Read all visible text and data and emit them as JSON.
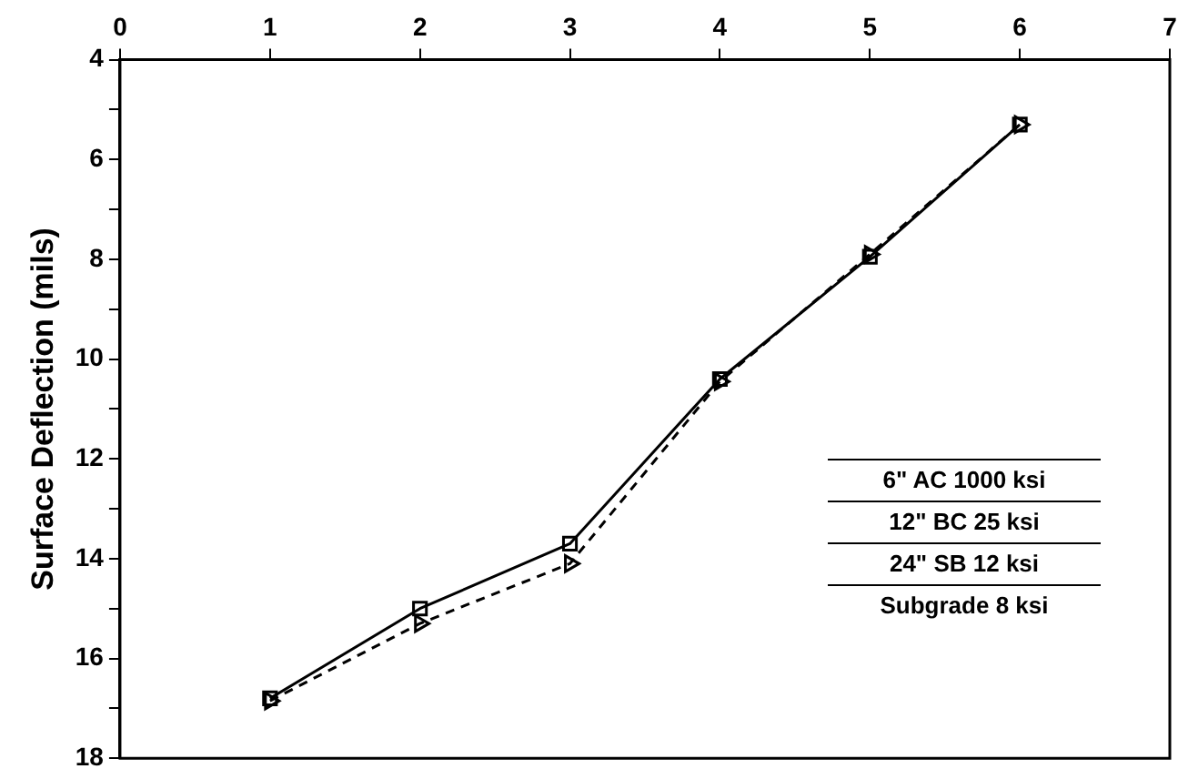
{
  "chart_data": {
    "type": "line",
    "ylabel": "Surface Deflection (mils)",
    "x": [
      1,
      2,
      3,
      4,
      5,
      6
    ],
    "series": [
      {
        "color": "#000000",
        "marker": "square",
        "line_style": "solid",
        "values": [
          16.8,
          15.0,
          13.7,
          10.4,
          7.95,
          5.3
        ]
      },
      {
        "color": "#000000",
        "marker": "triangle",
        "line_style": "dashed",
        "values": [
          16.85,
          15.3,
          14.1,
          10.45,
          7.9,
          5.3
        ]
      }
    ],
    "xlim": [
      0,
      7
    ],
    "xticks": [
      0,
      1,
      2,
      3,
      4,
      5,
      6,
      7
    ],
    "ylim": [
      18,
      4
    ],
    "yticks": [
      4,
      {
        "value": 5,
        "label": null
      },
      6,
      {
        "value": 7,
        "label": null
      },
      8,
      {
        "value": 9,
        "label": null
      },
      10,
      {
        "value": 11,
        "label": null
      },
      12,
      {
        "value": 13,
        "label": null
      },
      14,
      {
        "value": 15,
        "label": null
      },
      16,
      {
        "value": 17,
        "label": null
      },
      18
    ],
    "grid": false,
    "legend": false,
    "annotations": [
      "6\" AC 1000 ksi",
      "12\" BC 25 ksi",
      "24\" SB 12 ksi",
      "Subgrade 8 ksi"
    ]
  }
}
